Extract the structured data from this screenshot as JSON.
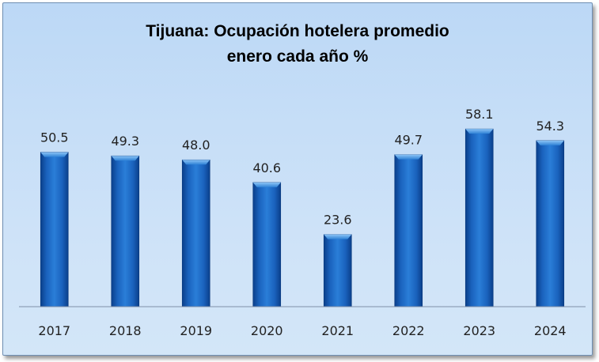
{
  "chart_data": {
    "type": "bar",
    "title": "Tijuana: Ocupación hotelera promedio",
    "subtitle": "enero cada año %",
    "categories": [
      "2017",
      "2018",
      "2019",
      "2020",
      "2021",
      "2022",
      "2023",
      "2024"
    ],
    "values": [
      50.5,
      49.3,
      48.0,
      40.6,
      23.6,
      49.7,
      58.1,
      54.3
    ],
    "data_labels": [
      "50.5",
      "49.3",
      "48.0",
      "40.6",
      "23.6",
      "49.7",
      "58.1",
      "54.3"
    ],
    "xlabel": "",
    "ylabel": "",
    "ylim": [
      0,
      65
    ],
    "grid": false,
    "legend": "none",
    "colors": {
      "bar_dark": "#0a3f8a",
      "bar_mid": "#1a6fce",
      "bar_light": "#5aa3ec",
      "background_top": "#bcd8f6",
      "background_bottom": "#d3e6f8",
      "axis": "#7f8fa6"
    }
  }
}
